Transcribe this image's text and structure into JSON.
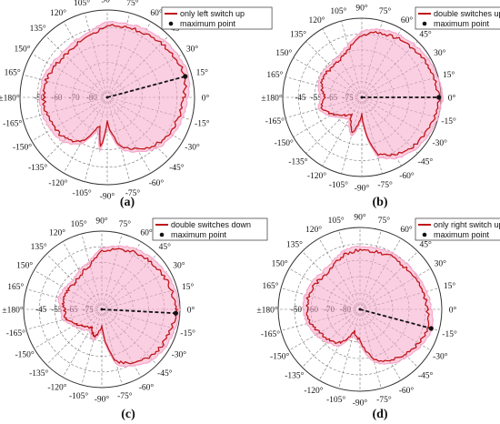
{
  "chart_data": [
    {
      "type": "polar",
      "panel_label": "(a)",
      "angle_labels": [
        "0°",
        "15°",
        "30°",
        "45°",
        "60°",
        "75°",
        "90°",
        "105°",
        "120°",
        "135°",
        "150°",
        "165°",
        "±180°",
        "-165°",
        "-150°",
        "-135°",
        "-120°",
        "-105°",
        "-90°",
        "-75°",
        "-60°",
        "-45°",
        "-30°",
        "-15°"
      ],
      "radial_tick_labels": [
        "-80",
        "-70",
        "-60",
        "-50"
      ],
      "rlim": [
        -85,
        -45
      ],
      "grid": true,
      "legend_position": "top-right",
      "colors": {
        "pattern": "#c0161b",
        "fill": "#f6a7c9",
        "max_line": "#111111"
      },
      "series": [
        {
          "name": "only left switch up",
          "theta_deg": [
            0,
            15,
            30,
            45,
            60,
            75,
            90,
            105,
            120,
            135,
            150,
            165,
            180,
            195,
            210,
            225,
            240,
            255,
            262,
            270,
            285,
            300,
            315,
            330,
            345,
            360
          ],
          "r_dB": [
            -50,
            -48,
            -49,
            -50,
            -51,
            -52,
            -52,
            -56,
            -57,
            -58,
            -57,
            -56,
            -56,
            -56,
            -57,
            -58,
            -62,
            -72,
            -62,
            -74,
            -62,
            -58,
            -54,
            -52,
            -51,
            -50
          ]
        }
      ],
      "maximum_point": {
        "label": "maximum point",
        "theta_deg": 15,
        "r_dB": -48
      }
    },
    {
      "type": "polar",
      "panel_label": "(b)",
      "angle_labels": [
        "0°",
        "15°",
        "30°",
        "45°",
        "60°",
        "75°",
        "90°",
        "105°",
        "120°",
        "135°",
        "150°",
        "165°",
        "±180°",
        "-165°",
        "-150°",
        "-135°",
        "-120°",
        "-105°",
        "-90°",
        "-75°",
        "-60°",
        "-45°",
        "-30°",
        "-15°"
      ],
      "radial_tick_labels": [
        "-75",
        "-65",
        "-55",
        "-45"
      ],
      "rlim": [
        -80,
        -42
      ],
      "grid": true,
      "legend_position": "top-right",
      "colors": {
        "pattern": "#c0161b",
        "fill": "#f6a7c9",
        "max_line": "#111111"
      },
      "series": [
        {
          "name": "double switches up",
          "theta_deg": [
            0,
            15,
            30,
            45,
            60,
            75,
            90,
            105,
            120,
            135,
            150,
            165,
            180,
            195,
            210,
            225,
            240,
            255,
            270,
            285,
            300,
            315,
            330,
            345,
            360
          ],
          "r_dB": [
            -43,
            -44,
            -45,
            -46,
            -47,
            -48,
            -50,
            -56,
            -59,
            -60,
            -59,
            -60,
            -62,
            -60,
            -64,
            -68,
            -70,
            -62,
            -72,
            -52,
            -48,
            -46,
            -45,
            -44,
            -43
          ]
        }
      ],
      "maximum_point": {
        "label": "maximum point",
        "theta_deg": 0,
        "r_dB": -43
      }
    },
    {
      "type": "polar",
      "panel_label": "(c)",
      "angle_labels": [
        "0°",
        "15°",
        "30°",
        "45°",
        "60°",
        "75°",
        "90°",
        "105°",
        "120°",
        "135°",
        "150°",
        "165°",
        "±180°",
        "-165°",
        "-150°",
        "-135°",
        "-120°",
        "-105°",
        "-90°",
        "-75°",
        "-60°",
        "-45°",
        "-30°",
        "-15°"
      ],
      "radial_tick_labels": [
        "-75",
        "-65",
        "-55",
        "-45"
      ],
      "rlim": [
        -80,
        -42
      ],
      "grid": true,
      "legend_position": "top-right",
      "colors": {
        "pattern": "#c0161b",
        "fill": "#f6a7c9",
        "max_line": "#111111"
      },
      "series": [
        {
          "name": "double switches down",
          "theta_deg": [
            0,
            15,
            30,
            45,
            60,
            75,
            90,
            105,
            120,
            135,
            150,
            165,
            180,
            195,
            210,
            225,
            240,
            255,
            270,
            285,
            300,
            315,
            330,
            345,
            360
          ],
          "r_dB": [
            -44,
            -45,
            -46,
            -47,
            -48,
            -50,
            -52,
            -58,
            -60,
            -62,
            -61,
            -60,
            -62,
            -62,
            -66,
            -68,
            -70,
            -66,
            -72,
            -54,
            -50,
            -47,
            -46,
            -45,
            -44
          ]
        }
      ],
      "maximum_point": {
        "label": "maximum point",
        "theta_deg": -3,
        "r_dB": -44
      }
    },
    {
      "type": "polar",
      "panel_label": "(d)",
      "angle_labels": [
        "0°",
        "15°",
        "30°",
        "45°",
        "60°",
        "75°",
        "90°",
        "105°",
        "120°",
        "135°",
        "150°",
        "165°",
        "±180°",
        "-165°",
        "-150°",
        "-135°",
        "-120°",
        "-105°",
        "-90°",
        "-75°",
        "-60°",
        "-45°",
        "-30°",
        "-15°"
      ],
      "radial_tick_labels": [
        "-80",
        "-70",
        "-60",
        "-50"
      ],
      "rlim": [
        -85,
        -45
      ],
      "grid": true,
      "legend_position": "top-right",
      "colors": {
        "pattern": "#c0161b",
        "fill": "#f6a7c9",
        "max_line": "#111111"
      },
      "series": [
        {
          "name": "only right switch up",
          "theta_deg": [
            0,
            15,
            30,
            45,
            60,
            75,
            90,
            105,
            120,
            135,
            150,
            165,
            180,
            195,
            210,
            225,
            240,
            255,
            270,
            285,
            300,
            315,
            330,
            345,
            360
          ],
          "r_dB": [
            -52,
            -53,
            -54,
            -55,
            -55,
            -56,
            -56,
            -57,
            -60,
            -61,
            -60,
            -59,
            -59,
            -60,
            -62,
            -64,
            -66,
            -74,
            -70,
            -60,
            -56,
            -54,
            -52,
            -50,
            -52
          ]
        }
      ],
      "maximum_point": {
        "label": "maximum point",
        "theta_deg": -15,
        "r_dB": -49
      }
    }
  ]
}
